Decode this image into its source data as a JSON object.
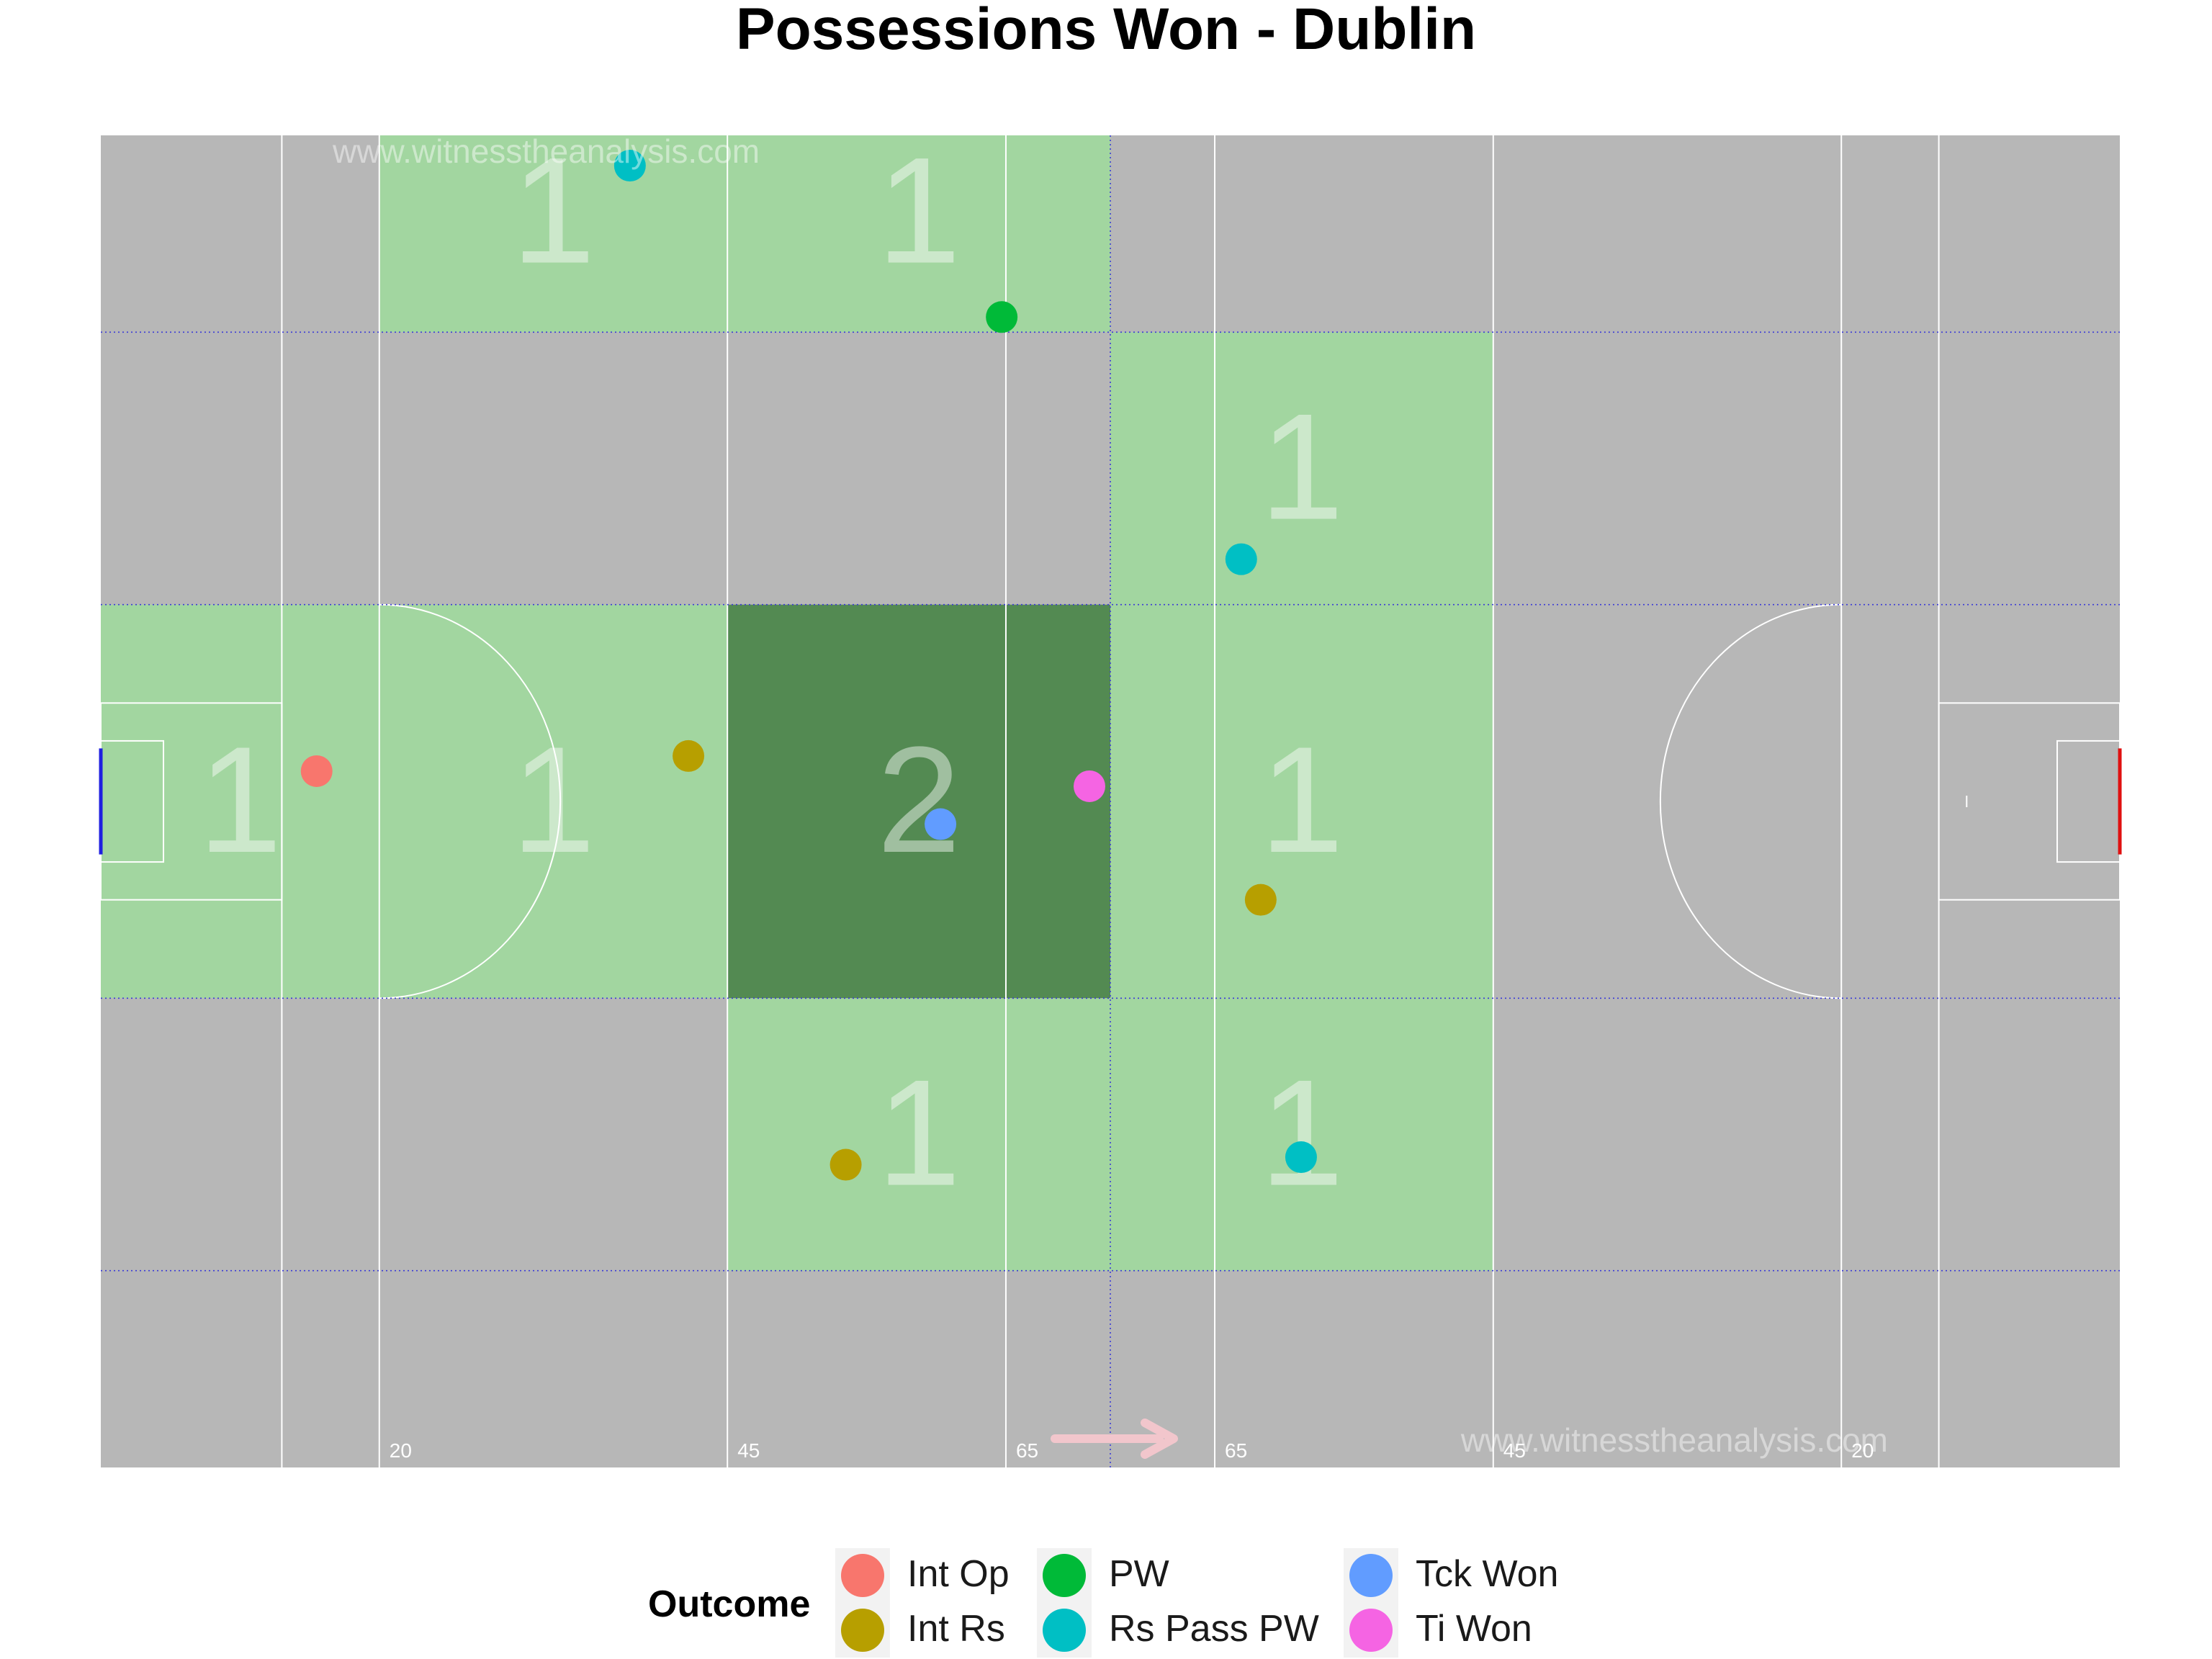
{
  "title": "Possessions Won - Dublin",
  "watermark": "www.witnesstheanalysis.com",
  "colors": {
    "pitch": "#b7b7b7",
    "zone_light": "#a2d6a0",
    "zone_dark": "#538a52",
    "lines": "#ffffff",
    "zone_grid": "#3b3bd6",
    "left_goal": "#2020e0",
    "right_goal": "#e01010",
    "arrow": "#f2c6cc"
  },
  "legend": {
    "title": "Outcome",
    "items": [
      {
        "label": "Int Op",
        "color": "#F8766D"
      },
      {
        "label": "Int Rs",
        "color": "#B79F00"
      },
      {
        "label": "PW",
        "color": "#00BA38"
      },
      {
        "label": "Rs Pass PW",
        "color": "#00BFC4"
      },
      {
        "label": "Tck Won",
        "color": "#619CFF"
      },
      {
        "label": "Ti Won",
        "color": "#F564E3"
      }
    ]
  },
  "chart_data": {
    "type": "scatter",
    "title": "Possessions Won - Dublin",
    "pitch_length_m": 145,
    "pitch_width_m": 88,
    "x_line_labels": [
      "20",
      "45",
      "65",
      "65",
      "45",
      "20"
    ],
    "x_line_positions_m": [
      20,
      45,
      65,
      80,
      100,
      125
    ],
    "zones": {
      "x_edges_m": [
        0,
        20,
        45,
        72.5,
        100,
        125,
        145
      ],
      "y_edges_m": [
        0,
        13,
        31,
        57,
        75,
        88
      ],
      "cells": [
        {
          "x_bin": 1,
          "y_bin": 0,
          "count": 1
        },
        {
          "x_bin": 2,
          "y_bin": 0,
          "count": 1
        },
        {
          "x_bin": 3,
          "y_bin": 1,
          "count": 1
        },
        {
          "x_bin": 0,
          "y_bin": 2,
          "count": 1
        },
        {
          "x_bin": 1,
          "y_bin": 2,
          "count": 1
        },
        {
          "x_bin": 2,
          "y_bin": 2,
          "count": 2
        },
        {
          "x_bin": 3,
          "y_bin": 2,
          "count": 1
        },
        {
          "x_bin": 2,
          "y_bin": 3,
          "count": 1
        },
        {
          "x_bin": 3,
          "y_bin": 3,
          "count": 1
        }
      ]
    },
    "points": [
      {
        "x": 15.5,
        "y": 42,
        "outcome": "Int Op"
      },
      {
        "x": 42.2,
        "y": 41,
        "outcome": "Int Rs"
      },
      {
        "x": 83.3,
        "y": 50.5,
        "outcome": "Int Rs"
      },
      {
        "x": 53.5,
        "y": 68,
        "outcome": "Int Rs"
      },
      {
        "x": 64.7,
        "y": 12,
        "outcome": "PW"
      },
      {
        "x": 38,
        "y": 2,
        "outcome": "Rs Pass PW"
      },
      {
        "x": 81.9,
        "y": 28,
        "outcome": "Rs Pass PW"
      },
      {
        "x": 86.2,
        "y": 67.5,
        "outcome": "Rs Pass PW"
      },
      {
        "x": 60.3,
        "y": 45.5,
        "outcome": "Tck Won"
      },
      {
        "x": 71,
        "y": 43,
        "outcome": "Ti Won"
      }
    ],
    "xlim": [
      0,
      145
    ],
    "ylim": [
      0,
      88
    ]
  }
}
